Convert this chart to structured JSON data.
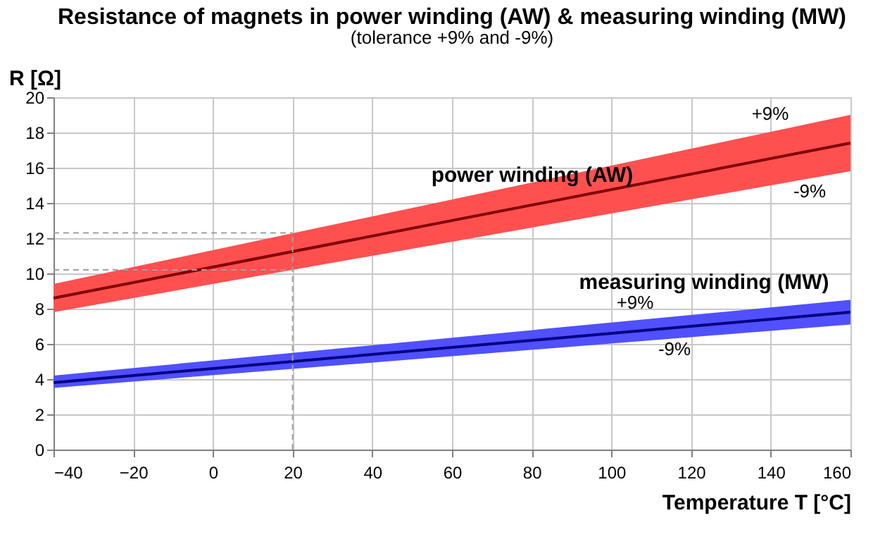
{
  "chart_data": {
    "type": "line",
    "title": "Resistance of magnets in power winding (AW) & measuring winding (MW)",
    "subtitle": "(tolerance +9% and -9%)",
    "xlabel": "Temperature T [°C]",
    "ylabel": "R [Ω]",
    "x": [
      -40,
      160
    ],
    "series": [
      {
        "color": "#800000",
        "values": [
          8.6,
          17.4
        ],
        "lower": [
          7.8,
          15.8
        ],
        "upper": [
          9.4,
          19.0
        ]
      },
      {
        "color": "#000080",
        "values": [
          3.8,
          7.8
        ],
        "lower": [
          3.5,
          7.1
        ],
        "upper": [
          4.2,
          8.5
        ]
      }
    ],
    "xlim": [
      -40,
      160
    ],
    "xticks": [
      -40,
      -20,
      0,
      20,
      40,
      60,
      80,
      100,
      120,
      140,
      160
    ],
    "ylim": [
      0,
      20
    ],
    "yticks": [
      0,
      2,
      4,
      6,
      8,
      10,
      12,
      14,
      16,
      18,
      20
    ],
    "grid": true,
    "marker": "none",
    "line_style": "solid",
    "ref_lines": [
      {
        "axis": "x",
        "value": 20,
        "label": null,
        "color": "#a0a0a0",
        "line_style": "dashed"
      },
      {
        "axis": "y",
        "value": 10.2,
        "label": null,
        "color": "#a0a0a0",
        "line_style": "dashed"
      },
      {
        "axis": "y",
        "value": 12.3,
        "label": null,
        "color": "#a0a0a0",
        "line_style": "dashed"
      }
    ],
    "annotations": [
      "power winding (AW)",
      "+9%",
      "-9%",
      "measuring winding (MW)",
      "+9%",
      "-9%"
    ]
  }
}
